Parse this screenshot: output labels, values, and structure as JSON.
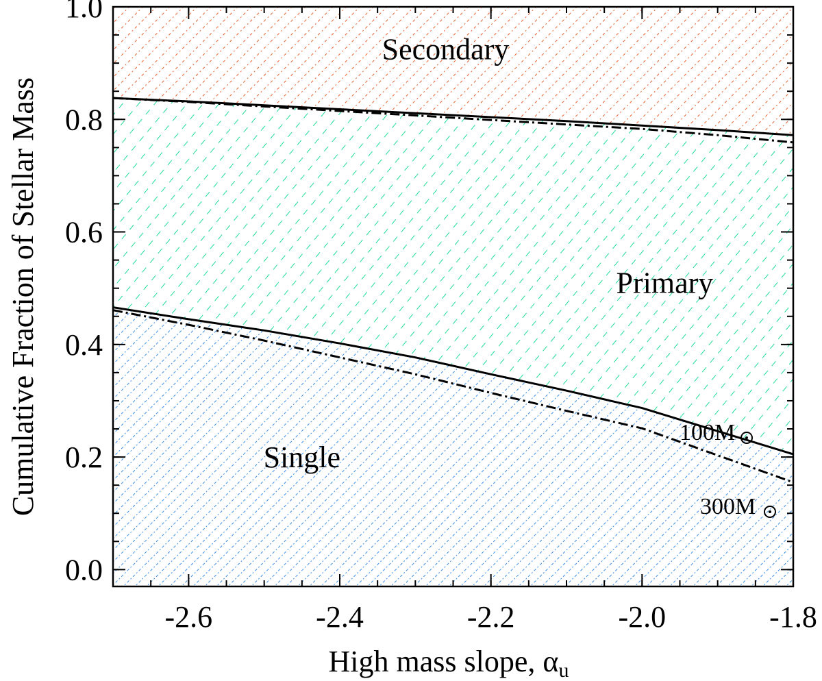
{
  "chart_data": {
    "type": "area",
    "title": "",
    "xlabel": "High mass slope, α",
    "xlabel_subscript": "u",
    "ylabel": "Cumulative Fraction of Stellar Mass",
    "xlim": [
      -2.7,
      -1.8
    ],
    "ylim": [
      -0.03,
      1.0
    ],
    "x_ticks": [
      -2.6,
      -2.4,
      -2.2,
      -2.0,
      -1.8
    ],
    "x_tick_labels": [
      "-2.6",
      "-2.4",
      "-2.2",
      "-2.0",
      "-1.8"
    ],
    "y_ticks": [
      0.0,
      0.2,
      0.4,
      0.6,
      0.8,
      1.0
    ],
    "y_tick_labels": [
      "0.0",
      "0.2",
      "0.4",
      "0.6",
      "0.8",
      "1.0"
    ],
    "x": [
      -2.7,
      -2.6,
      -2.5,
      -2.4,
      -2.3,
      -2.2,
      -2.1,
      -2.0,
      -1.9,
      -1.8
    ],
    "series": [
      {
        "name": "Single / Primary boundary (100M⊙)",
        "mass_label": "100M",
        "style": "solid",
        "values": [
          0.466,
          0.445,
          0.425,
          0.402,
          0.377,
          0.347,
          0.318,
          0.287,
          0.246,
          0.205
        ]
      },
      {
        "name": "Single / Primary boundary (300M⊙)",
        "mass_label": "300M",
        "style": "dashdot",
        "values": [
          0.461,
          0.435,
          0.407,
          0.377,
          0.347,
          0.314,
          0.282,
          0.251,
          0.203,
          0.155
        ]
      },
      {
        "name": "Primary / Secondary boundary (100M⊙)",
        "style": "solid",
        "values": [
          0.838,
          0.832,
          0.825,
          0.818,
          0.811,
          0.804,
          0.797,
          0.789,
          0.781,
          0.772
        ]
      },
      {
        "name": "Primary / Secondary boundary (300M⊙)",
        "style": "dashdot",
        "values": [
          0.838,
          0.831,
          0.823,
          0.815,
          0.807,
          0.799,
          0.791,
          0.783,
          0.772,
          0.759
        ]
      }
    ],
    "regions": [
      {
        "name": "Single",
        "label_x": -2.45,
        "label_y": 0.2,
        "color": "#3a8ee8",
        "hatch": "dotted"
      },
      {
        "name": "Primary",
        "label_x": -1.97,
        "label_y": 0.51,
        "color": "#1fdc96",
        "hatch": "dashed"
      },
      {
        "name": "Secondary",
        "label_x": -2.26,
        "label_y": 0.925,
        "color": "#e8602a",
        "hatch": "dotted"
      }
    ],
    "grid": false,
    "legend": "none"
  }
}
